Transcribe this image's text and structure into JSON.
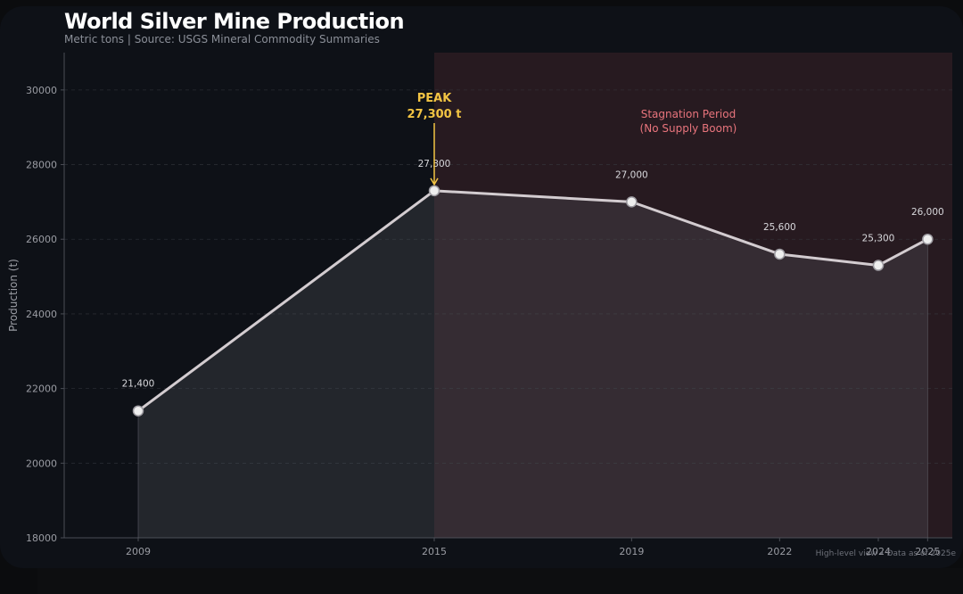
{
  "header": {
    "title": "World Silver Mine Production",
    "subtitle": "Metric tons | Source: USGS Mineral Commodity Summaries"
  },
  "colors": {
    "background": "#0e1117",
    "line": "#d3ccd0",
    "area_fill": "#2a2d33",
    "highlight_region": "#2c1c22",
    "peak_annotation": "#f2c443",
    "region_label": "#e8747c",
    "grid": "#3a3d44",
    "text_muted": "#9a9ca3"
  },
  "chart_data": {
    "type": "line",
    "title": "World Silver Mine Production",
    "xlabel": "",
    "ylabel": "Production (t)",
    "x": [
      2009,
      2015,
      2019,
      2022,
      2024,
      2025
    ],
    "x_tick_labels": [
      "2009",
      "2015",
      "2019",
      "2022",
      "2024",
      "2025"
    ],
    "xlim": [
      2007.5,
      2025.5
    ],
    "ylim": [
      18000,
      31000
    ],
    "y_ticks": [
      18000,
      20000,
      22000,
      24000,
      26000,
      28000,
      30000
    ],
    "y_tick_labels": [
      "18000",
      "20000",
      "22000",
      "24000",
      "26000",
      "28000",
      "30000"
    ],
    "grid": "horizontal dashed",
    "area_under_line": true,
    "series": [
      {
        "values": [
          21400,
          27300,
          27000,
          25600,
          25300,
          26000
        ],
        "data_labels": [
          "21,400",
          "27,300",
          "27,000",
          "25,600",
          "25,300",
          "26,000"
        ]
      }
    ],
    "shaded_region": {
      "x_from": 2015,
      "x_to": 2025.5,
      "label_line1": "Stagnation Period",
      "label_line2": "(No Supply Boom)"
    },
    "peak_annotation": {
      "x": 2015,
      "y": 27300,
      "line1": "PEAK",
      "line2": "27,300 t"
    }
  },
  "footnote": "High-level view • Data as of 2025e"
}
